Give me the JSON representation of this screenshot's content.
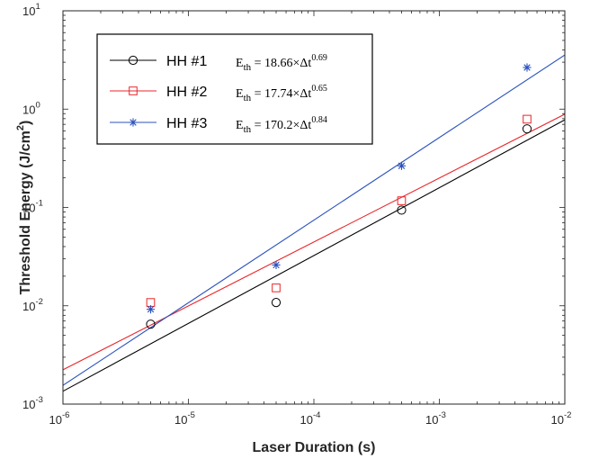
{
  "chart_data": {
    "type": "scatter",
    "xscale": "log",
    "yscale": "log",
    "xlim": [
      1e-06,
      0.01
    ],
    "ylim": [
      0.001,
      10
    ],
    "xlabel": "Laser Duration (s)",
    "ylabel": {
      "main": "Threshold Energy (J/cm",
      "sup": "2",
      "end": ")"
    },
    "xticks": [
      {
        "base": "10",
        "exp": "-6",
        "value": 1e-06
      },
      {
        "base": "10",
        "exp": "-5",
        "value": 1e-05
      },
      {
        "base": "10",
        "exp": "-4",
        "value": 0.0001
      },
      {
        "base": "10",
        "exp": "-3",
        "value": 0.001
      },
      {
        "base": "10",
        "exp": "-2",
        "value": 0.01
      }
    ],
    "yticks": [
      {
        "base": "10",
        "exp": "-3",
        "value": 0.001
      },
      {
        "base": "10",
        "exp": "-2",
        "value": 0.01
      },
      {
        "base": "10",
        "exp": "-1",
        "value": 0.1
      },
      {
        "base": "10",
        "exp": "0",
        "value": 1
      },
      {
        "base": "10",
        "exp": "1",
        "value": 10
      }
    ],
    "legend_position": "top-left",
    "series": [
      {
        "name": "HH #1",
        "marker": "circle",
        "color": "#000000",
        "x": [
          5e-06,
          5e-05,
          0.0005,
          0.005
        ],
        "y": [
          0.0065,
          0.0108,
          0.094,
          0.63
        ],
        "fit": {
          "coef": 18.66,
          "exp": 0.69,
          "prefix": "E",
          "sub": "th",
          "mid": " = 18.66×Δt",
          "power": "0.69"
        }
      },
      {
        "name": "HH #2",
        "marker": "square",
        "color": "#e8262b",
        "x": [
          5e-06,
          5e-05,
          0.0005,
          0.005
        ],
        "y": [
          0.0108,
          0.0152,
          0.117,
          0.79
        ],
        "fit": {
          "coef": 17.74,
          "exp": 0.65,
          "prefix": "E",
          "sub": "th",
          "mid": " = 17.74×Δt",
          "power": "0.65"
        }
      },
      {
        "name": "HH #3",
        "marker": "asterisk",
        "color": "#2a52be",
        "x": [
          5e-06,
          5e-05,
          0.0005,
          0.005
        ],
        "y": [
          0.0092,
          0.026,
          0.265,
          2.65
        ],
        "fit": {
          "coef": 170.2,
          "exp": 0.84,
          "prefix": "E",
          "sub": "th",
          "mid": " = 170.2×Δt",
          "power": "0.84"
        }
      }
    ]
  }
}
